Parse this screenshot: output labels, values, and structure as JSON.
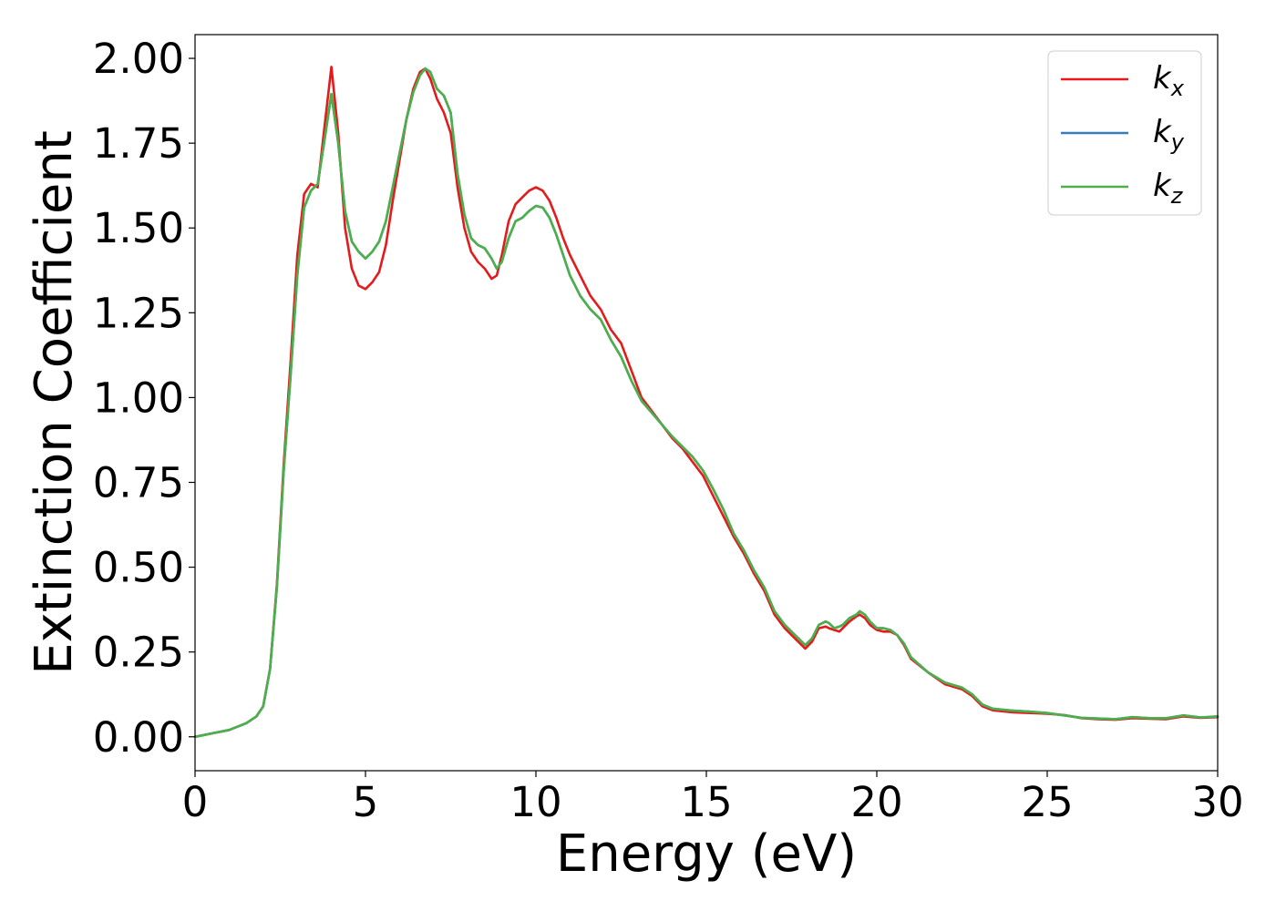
{
  "chart_data": {
    "type": "line",
    "title": "",
    "xlabel": "Energy (eV)",
    "ylabel": "Extinction Coefficient",
    "xlim": [
      0,
      30
    ],
    "ylim": [
      -0.1,
      2.07
    ],
    "xticks": [
      0,
      5,
      10,
      15,
      20,
      25,
      30
    ],
    "xtick_labels": [
      "0",
      "5",
      "10",
      "15",
      "20",
      "25",
      "30"
    ],
    "yticks": [
      0.0,
      0.25,
      0.5,
      0.75,
      1.0,
      1.25,
      1.5,
      1.75,
      2.0
    ],
    "ytick_labels": [
      "0.00",
      "0.25",
      "0.50",
      "0.75",
      "1.00",
      "1.25",
      "1.50",
      "1.75",
      "2.00"
    ],
    "grid": false,
    "legend": {
      "position": "upper right",
      "entries": [
        {
          "base": "k",
          "sub": "x",
          "color": "#e41a1c"
        },
        {
          "base": "k",
          "sub": "y",
          "color": "#377eb8"
        },
        {
          "base": "k",
          "sub": "z",
          "color": "#4daf4a"
        }
      ]
    },
    "series": [
      {
        "name": "kx",
        "color": "#e41a1c",
        "x": [
          0,
          0.5,
          1.0,
          1.5,
          1.8,
          2.0,
          2.2,
          2.4,
          2.6,
          2.8,
          3.0,
          3.2,
          3.4,
          3.6,
          3.8,
          4.0,
          4.2,
          4.4,
          4.6,
          4.8,
          5.0,
          5.2,
          5.4,
          5.6,
          5.8,
          6.0,
          6.2,
          6.4,
          6.6,
          6.75,
          6.9,
          7.1,
          7.3,
          7.5,
          7.7,
          7.9,
          8.1,
          8.3,
          8.5,
          8.7,
          8.85,
          9.0,
          9.2,
          9.4,
          9.6,
          9.8,
          10.0,
          10.2,
          10.4,
          10.6,
          10.8,
          11.0,
          11.3,
          11.6,
          11.9,
          12.2,
          12.5,
          12.8,
          13.1,
          13.4,
          13.7,
          14.0,
          14.3,
          14.6,
          14.9,
          15.2,
          15.5,
          15.8,
          16.1,
          16.4,
          16.7,
          17.0,
          17.3,
          17.6,
          17.9,
          18.1,
          18.3,
          18.5,
          18.6,
          18.75,
          18.9,
          19.0,
          19.2,
          19.4,
          19.5,
          19.65,
          19.8,
          20.0,
          20.2,
          20.4,
          20.6,
          20.8,
          21.0,
          21.5,
          22.0,
          22.5,
          22.8,
          23.1,
          23.4,
          23.7,
          24.0,
          24.5,
          25.0,
          25.5,
          26.0,
          26.5,
          27.0,
          27.5,
          28.0,
          28.5,
          29.0,
          29.5,
          30.0
        ],
        "values": [
          0.0,
          0.01,
          0.02,
          0.04,
          0.06,
          0.09,
          0.2,
          0.45,
          0.8,
          1.1,
          1.42,
          1.6,
          1.63,
          1.62,
          1.8,
          1.975,
          1.78,
          1.5,
          1.38,
          1.33,
          1.32,
          1.34,
          1.37,
          1.45,
          1.58,
          1.7,
          1.82,
          1.91,
          1.96,
          1.97,
          1.94,
          1.88,
          1.84,
          1.78,
          1.62,
          1.5,
          1.43,
          1.4,
          1.38,
          1.35,
          1.36,
          1.42,
          1.52,
          1.57,
          1.59,
          1.61,
          1.62,
          1.61,
          1.58,
          1.53,
          1.47,
          1.42,
          1.36,
          1.3,
          1.26,
          1.2,
          1.16,
          1.08,
          1.0,
          0.96,
          0.92,
          0.88,
          0.85,
          0.81,
          0.77,
          0.71,
          0.65,
          0.59,
          0.54,
          0.48,
          0.43,
          0.36,
          0.32,
          0.29,
          0.26,
          0.28,
          0.32,
          0.325,
          0.32,
          0.315,
          0.31,
          0.32,
          0.34,
          0.355,
          0.36,
          0.35,
          0.33,
          0.315,
          0.31,
          0.31,
          0.3,
          0.27,
          0.23,
          0.19,
          0.155,
          0.14,
          0.12,
          0.09,
          0.078,
          0.075,
          0.072,
          0.07,
          0.068,
          0.064,
          0.055,
          0.052,
          0.05,
          0.055,
          0.053,
          0.052,
          0.06,
          0.056,
          0.058
        ]
      },
      {
        "name": "ky",
        "color": "#377eb8",
        "x": [
          0,
          0.5,
          1.0,
          1.5,
          1.8,
          2.0,
          2.2,
          2.4,
          2.6,
          2.8,
          3.0,
          3.2,
          3.4,
          3.6,
          3.8,
          4.0,
          4.2,
          4.4,
          4.6,
          4.8,
          5.0,
          5.2,
          5.4,
          5.6,
          5.8,
          6.0,
          6.2,
          6.4,
          6.6,
          6.75,
          6.9,
          7.1,
          7.3,
          7.5,
          7.7,
          7.9,
          8.1,
          8.3,
          8.5,
          8.7,
          8.85,
          9.0,
          9.2,
          9.4,
          9.6,
          9.8,
          10.0,
          10.2,
          10.4,
          10.6,
          10.8,
          11.0,
          11.3,
          11.6,
          11.9,
          12.2,
          12.5,
          12.8,
          13.1,
          13.4,
          13.7,
          14.0,
          14.3,
          14.6,
          14.9,
          15.2,
          15.5,
          15.8,
          16.1,
          16.4,
          16.7,
          17.0,
          17.3,
          17.6,
          17.9,
          18.1,
          18.3,
          18.5,
          18.6,
          18.75,
          18.9,
          19.0,
          19.2,
          19.4,
          19.5,
          19.65,
          19.8,
          20.0,
          20.2,
          20.4,
          20.6,
          20.8,
          21.0,
          21.5,
          22.0,
          22.5,
          22.8,
          23.1,
          23.4,
          23.7,
          24.0,
          24.5,
          25.0,
          25.5,
          26.0,
          26.5,
          27.0,
          27.5,
          28.0,
          28.5,
          29.0,
          29.5,
          30.0
        ],
        "values": [
          0.0,
          0.01,
          0.02,
          0.04,
          0.06,
          0.09,
          0.2,
          0.44,
          0.78,
          1.06,
          1.36,
          1.56,
          1.61,
          1.63,
          1.76,
          1.895,
          1.75,
          1.55,
          1.46,
          1.43,
          1.41,
          1.43,
          1.46,
          1.52,
          1.62,
          1.72,
          1.82,
          1.9,
          1.95,
          1.97,
          1.96,
          1.91,
          1.89,
          1.84,
          1.66,
          1.54,
          1.47,
          1.45,
          1.44,
          1.41,
          1.38,
          1.4,
          1.47,
          1.52,
          1.53,
          1.55,
          1.565,
          1.56,
          1.53,
          1.48,
          1.42,
          1.36,
          1.3,
          1.26,
          1.23,
          1.17,
          1.12,
          1.05,
          0.99,
          0.955,
          0.92,
          0.885,
          0.855,
          0.825,
          0.785,
          0.73,
          0.67,
          0.6,
          0.55,
          0.49,
          0.44,
          0.37,
          0.33,
          0.3,
          0.27,
          0.29,
          0.33,
          0.34,
          0.335,
          0.32,
          0.325,
          0.33,
          0.35,
          0.36,
          0.37,
          0.36,
          0.34,
          0.32,
          0.32,
          0.315,
          0.3,
          0.275,
          0.235,
          0.19,
          0.16,
          0.145,
          0.125,
          0.095,
          0.083,
          0.08,
          0.077,
          0.074,
          0.07,
          0.063,
          0.056,
          0.054,
          0.052,
          0.058,
          0.055,
          0.055,
          0.063,
          0.057,
          0.06
        ]
      },
      {
        "name": "kz",
        "color": "#4daf4a",
        "x": [
          0,
          0.5,
          1.0,
          1.5,
          1.8,
          2.0,
          2.2,
          2.4,
          2.6,
          2.8,
          3.0,
          3.2,
          3.4,
          3.6,
          3.8,
          4.0,
          4.2,
          4.4,
          4.6,
          4.8,
          5.0,
          5.2,
          5.4,
          5.6,
          5.8,
          6.0,
          6.2,
          6.4,
          6.6,
          6.75,
          6.9,
          7.1,
          7.3,
          7.5,
          7.7,
          7.9,
          8.1,
          8.3,
          8.5,
          8.7,
          8.85,
          9.0,
          9.2,
          9.4,
          9.6,
          9.8,
          10.0,
          10.2,
          10.4,
          10.6,
          10.8,
          11.0,
          11.3,
          11.6,
          11.9,
          12.2,
          12.5,
          12.8,
          13.1,
          13.4,
          13.7,
          14.0,
          14.3,
          14.6,
          14.9,
          15.2,
          15.5,
          15.8,
          16.1,
          16.4,
          16.7,
          17.0,
          17.3,
          17.6,
          17.9,
          18.1,
          18.3,
          18.5,
          18.6,
          18.75,
          18.9,
          19.0,
          19.2,
          19.4,
          19.5,
          19.65,
          19.8,
          20.0,
          20.2,
          20.4,
          20.6,
          20.8,
          21.0,
          21.5,
          22.0,
          22.5,
          22.8,
          23.1,
          23.4,
          23.7,
          24.0,
          24.5,
          25.0,
          25.5,
          26.0,
          26.5,
          27.0,
          27.5,
          28.0,
          28.5,
          29.0,
          29.5,
          30.0
        ],
        "values": [
          0.0,
          0.01,
          0.02,
          0.04,
          0.06,
          0.09,
          0.2,
          0.44,
          0.78,
          1.06,
          1.36,
          1.56,
          1.61,
          1.63,
          1.76,
          1.895,
          1.75,
          1.55,
          1.46,
          1.43,
          1.41,
          1.43,
          1.46,
          1.52,
          1.62,
          1.72,
          1.82,
          1.9,
          1.95,
          1.97,
          1.96,
          1.91,
          1.89,
          1.84,
          1.66,
          1.54,
          1.47,
          1.45,
          1.44,
          1.41,
          1.38,
          1.4,
          1.47,
          1.52,
          1.53,
          1.55,
          1.565,
          1.56,
          1.53,
          1.48,
          1.42,
          1.36,
          1.3,
          1.26,
          1.23,
          1.17,
          1.12,
          1.05,
          0.99,
          0.955,
          0.92,
          0.885,
          0.855,
          0.825,
          0.785,
          0.73,
          0.67,
          0.6,
          0.55,
          0.49,
          0.44,
          0.37,
          0.33,
          0.3,
          0.27,
          0.29,
          0.33,
          0.34,
          0.335,
          0.32,
          0.325,
          0.33,
          0.35,
          0.36,
          0.37,
          0.36,
          0.34,
          0.32,
          0.32,
          0.315,
          0.3,
          0.275,
          0.235,
          0.19,
          0.16,
          0.145,
          0.125,
          0.095,
          0.083,
          0.08,
          0.077,
          0.074,
          0.07,
          0.063,
          0.056,
          0.054,
          0.052,
          0.058,
          0.055,
          0.055,
          0.063,
          0.057,
          0.06
        ]
      }
    ]
  }
}
